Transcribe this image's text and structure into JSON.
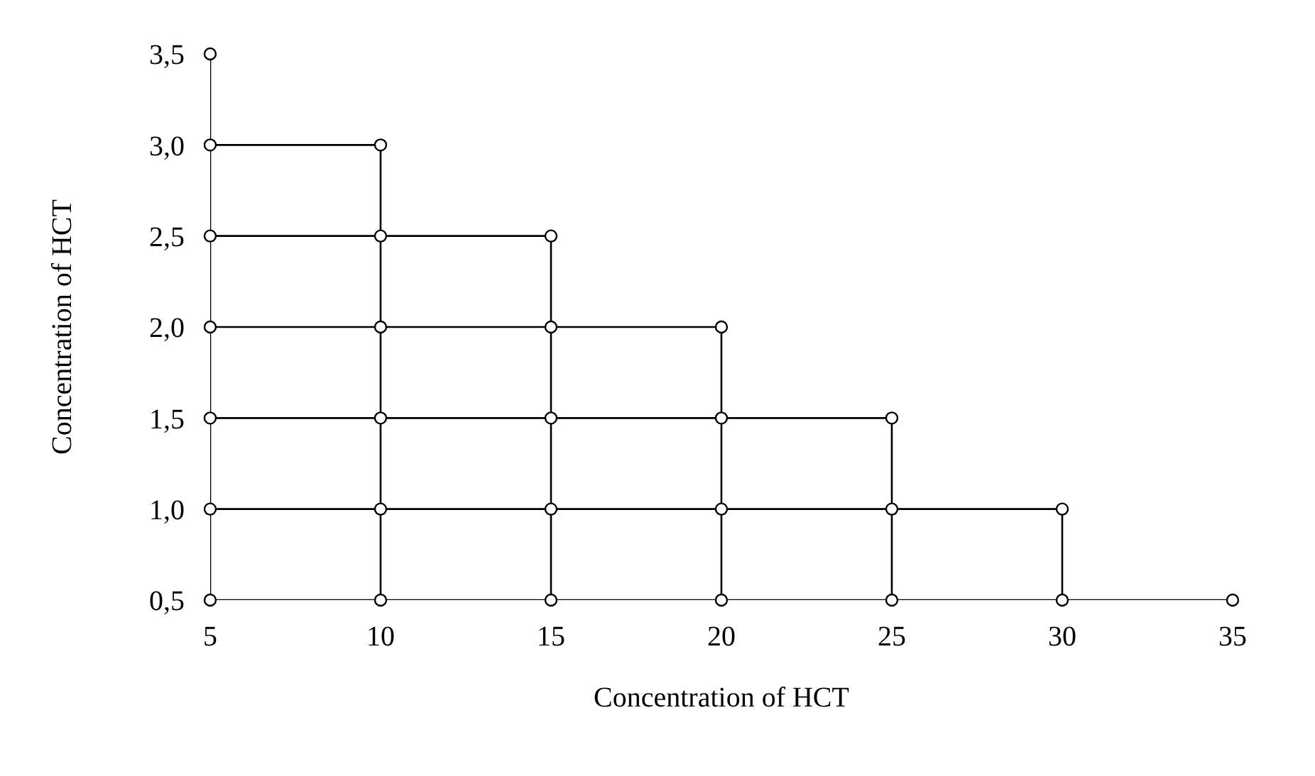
{
  "chart_data": {
    "type": "line",
    "xlabel": "Concentration of HCT",
    "ylabel": "Concentration of HCT",
    "xlim": [
      5,
      35
    ],
    "xticks": [
      5,
      10,
      15,
      20,
      25,
      30,
      35
    ],
    "ylim": [
      0.5,
      3.5
    ],
    "yticks": [
      {
        "value": 0.5,
        "label": "0,5"
      },
      {
        "value": 1,
        "label": "1,0"
      },
      {
        "value": 1.5,
        "label": "1,5"
      },
      {
        "value": 2,
        "label": "2,0"
      },
      {
        "value": 2.5,
        "label": "2,5"
      },
      {
        "value": 3,
        "label": "3,0"
      },
      {
        "value": 3.5,
        "label": "3,5"
      }
    ],
    "line_style": "solid",
    "series": [
      {
        "color": "#000000",
        "marker": "circle",
        "x": [
          5,
          5,
          5,
          5,
          5,
          5,
          5
        ],
        "values": [
          0.5,
          1.0,
          1.5,
          2.0,
          2.5,
          3.0,
          3.5
        ]
      },
      {
        "color": "#000000",
        "marker": "circle",
        "x": [
          10,
          10,
          10,
          10,
          10,
          10
        ],
        "values": [
          0.5,
          1.0,
          1.5,
          2.0,
          2.5,
          3.0
        ]
      },
      {
        "color": "#000000",
        "marker": "circle",
        "x": [
          15,
          15,
          15,
          15,
          15
        ],
        "values": [
          0.5,
          1.0,
          1.5,
          2.0,
          2.5
        ]
      },
      {
        "color": "#000000",
        "marker": "circle",
        "x": [
          20,
          20,
          20,
          20
        ],
        "values": [
          0.5,
          1.0,
          1.5,
          2.0
        ]
      },
      {
        "color": "#000000",
        "marker": "circle",
        "x": [
          25,
          25,
          25
        ],
        "values": [
          0.5,
          1.0,
          1.5
        ]
      },
      {
        "color": "#000000",
        "marker": "circle",
        "x": [
          30,
          30
        ],
        "values": [
          0.5,
          1.0
        ]
      },
      {
        "color": "#000000",
        "marker": "circle",
        "x": [
          35
        ],
        "values": [
          0.5
        ]
      },
      {
        "color": "#000000",
        "x": [
          5,
          35
        ],
        "values": [
          0.5,
          0.5
        ]
      },
      {
        "color": "#000000",
        "x": [
          5,
          30
        ],
        "values": [
          1.0,
          1.0
        ]
      },
      {
        "color": "#000000",
        "x": [
          5,
          25
        ],
        "values": [
          1.5,
          1.5
        ]
      },
      {
        "color": "#000000",
        "x": [
          5,
          20
        ],
        "values": [
          2.0,
          2.0
        ]
      },
      {
        "color": "#000000",
        "x": [
          5,
          15
        ],
        "values": [
          2.5,
          2.5
        ]
      },
      {
        "color": "#000000",
        "x": [
          5,
          10
        ],
        "values": [
          3.0,
          3.0
        ]
      }
    ]
  }
}
